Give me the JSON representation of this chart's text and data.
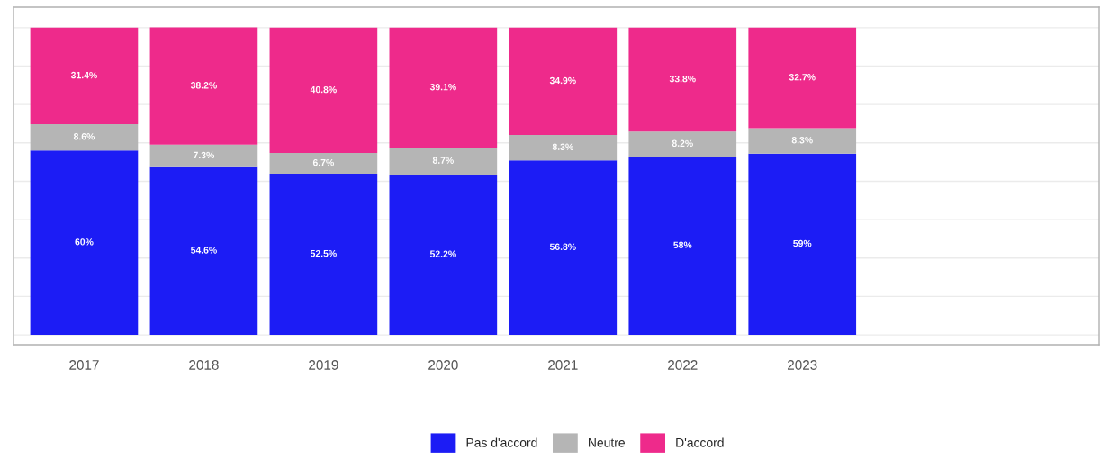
{
  "chart_data": {
    "type": "bar",
    "stacked": true,
    "categories": [
      "2017",
      "2018",
      "2019",
      "2020",
      "2021",
      "2022",
      "2023"
    ],
    "series": [
      {
        "name": "Pas d'accord",
        "color": "#1c1cf5",
        "values": [
          60,
          54.6,
          52.5,
          52.2,
          56.8,
          58,
          59
        ],
        "value_labels": [
          "60%",
          "54.6%",
          "52.5%",
          "52.2%",
          "56.8%",
          "58%",
          "59%"
        ]
      },
      {
        "name": "Neutre",
        "color": "#b5b5b5",
        "values": [
          8.6,
          7.3,
          6.7,
          8.7,
          8.3,
          8.2,
          8.3
        ],
        "value_labels": [
          "8.6%",
          "7.3%",
          "6.7%",
          "8.7%",
          "8.3%",
          "8.2%",
          "8.3%"
        ]
      },
      {
        "name": "D'accord",
        "color": "#ee2a8b",
        "values": [
          31.4,
          38.2,
          40.8,
          39.1,
          34.9,
          33.8,
          32.7
        ],
        "value_labels": [
          "31.4%",
          "38.2%",
          "40.8%",
          "39.1%",
          "34.9%",
          "33.8%",
          "32.7%"
        ]
      }
    ],
    "ylim": [
      -3.2,
      106.7
    ],
    "yticks": [
      {
        "value": 0,
        "label": null
      },
      {
        "value": 12.5,
        "label": null
      },
      {
        "value": 25,
        "label": null
      },
      {
        "value": 37.5,
        "label": null
      },
      {
        "value": 50,
        "label": null
      },
      {
        "value": 62.5,
        "label": null
      },
      {
        "value": 75,
        "label": null
      },
      {
        "value": 87.5,
        "label": null
      },
      {
        "value": 100,
        "label": null
      }
    ],
    "grid": "y",
    "legend": "bottom",
    "tick_labels": "x"
  }
}
